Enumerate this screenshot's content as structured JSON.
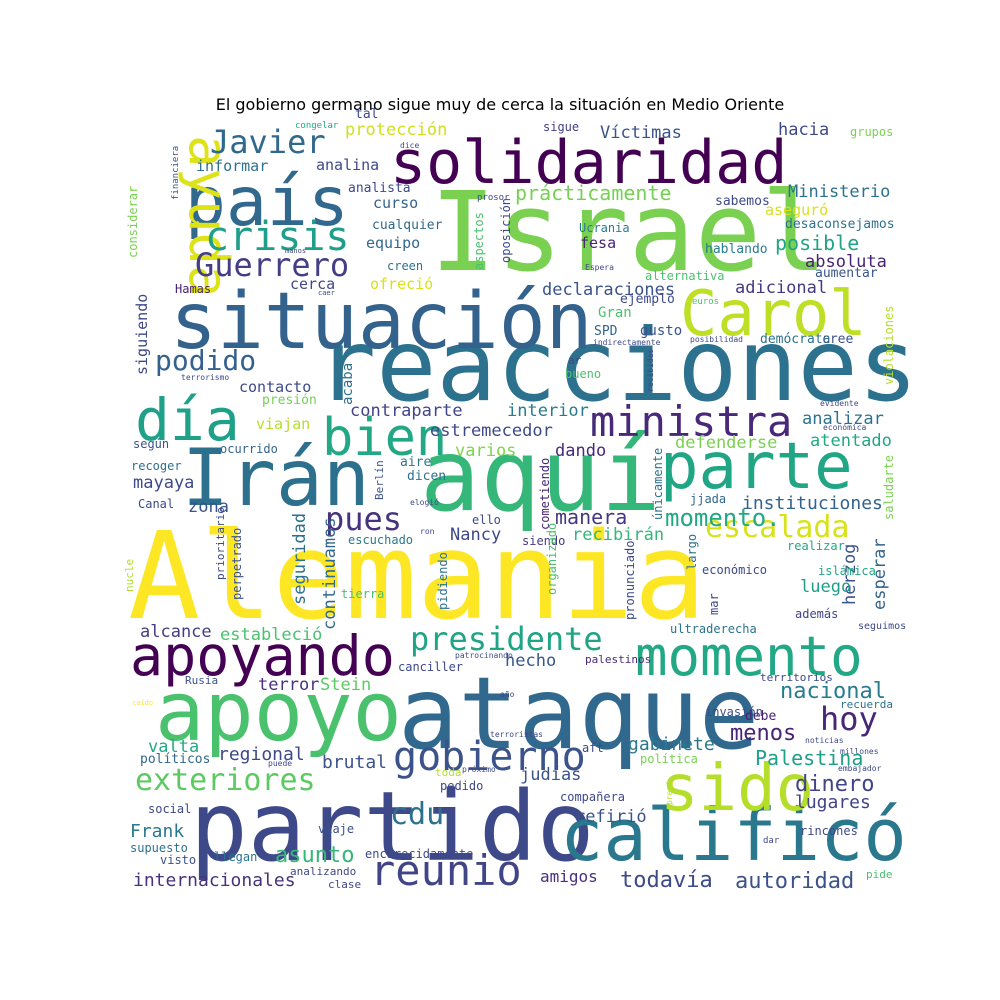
{
  "title": "El gobierno germano sigue muy de cerca la situación en Medio Oriente",
  "colormap": "viridis",
  "background": "#ffffff",
  "words": [
    {
      "text": "Alemania",
      "color": "#fde725"
    },
    {
      "text": "Israel",
      "color": "#7ad151"
    },
    {
      "text": "ataque",
      "color": "#31688e"
    },
    {
      "text": "reacciones",
      "color": "#2c728e"
    },
    {
      "text": "aquí",
      "color": "#35b779"
    },
    {
      "text": "partido",
      "color": "#3e4989"
    },
    {
      "text": "situación",
      "color": "#33638d"
    },
    {
      "text": "apoyo",
      "color": "#4ac16d"
    },
    {
      "text": "solidaridad",
      "color": "#440154"
    },
    {
      "text": "Irán",
      "color": "#2d708e"
    },
    {
      "text": "calificó",
      "color": "#2a788e"
    },
    {
      "text": "país",
      "color": "#31688e"
    },
    {
      "text": "Carol",
      "color": "#bddf26"
    },
    {
      "text": "parte",
      "color": "#21a685"
    },
    {
      "text": "momento",
      "color": "#22a884"
    },
    {
      "text": "apoyando",
      "color": "#440154"
    },
    {
      "text": "día",
      "color": "#1fa088"
    },
    {
      "text": "sido",
      "color": "#b5de2b"
    },
    {
      "text": "ayuda",
      "color": "#dde318"
    },
    {
      "text": "gobierno",
      "color": "#3b528b"
    },
    {
      "text": "bien",
      "color": "#22a884"
    },
    {
      "text": "reunió",
      "color": "#414487"
    },
    {
      "text": "crisis",
      "color": "#1f9e89"
    },
    {
      "text": "ministra",
      "color": "#482878"
    },
    {
      "text": "presidente",
      "color": "#20a486"
    },
    {
      "text": "exteriores",
      "color": "#5ec962"
    },
    {
      "text": "Guerrero",
      "color": "#433e85"
    },
    {
      "text": "Javier",
      "color": "#31688e"
    },
    {
      "text": "escalada",
      "color": "#d8e219"
    },
    {
      "text": "pues",
      "color": "#46327e"
    },
    {
      "text": "hoy",
      "color": "#482677"
    },
    {
      "text": "cdu",
      "color": "#2c728e"
    },
    {
      "text": "podido",
      "color": "#34618d"
    },
    {
      "text": "nacional",
      "color": "#287c8e"
    },
    {
      "text": "momento.",
      "color": "#22a884"
    },
    {
      "text": "Palestina",
      "color": "#1fa088"
    },
    {
      "text": "autoridad",
      "color": "#3b528b"
    },
    {
      "text": "todavía",
      "color": "#3e4989"
    },
    {
      "text": "manera",
      "color": "#453882"
    },
    {
      "text": "menos",
      "color": "#482475"
    },
    {
      "text": "asunto",
      "color": "#35b779"
    },
    {
      "text": "gabinete",
      "color": "#2a788e"
    },
    {
      "text": "dinero",
      "color": "#414487"
    },
    {
      "text": "lugares",
      "color": "#414487"
    },
    {
      "text": "brutal",
      "color": "#3b528b"
    },
    {
      "text": "regional",
      "color": "#3e4989"
    },
    {
      "text": "Frank",
      "color": "#2a788e"
    },
    {
      "text": "internacionales",
      "color": "#46337e"
    },
    {
      "text": "amigos",
      "color": "#472f7d"
    },
    {
      "text": "instituciones",
      "color": "#33638d"
    },
    {
      "text": "protección",
      "color": "#d0e11c"
    },
    {
      "text": "prácticamente",
      "color": "#75d054"
    },
    {
      "text": "Víctimas",
      "color": "#3b528b"
    },
    {
      "text": "hacia",
      "color": "#3e4989"
    },
    {
      "text": "Ministerio",
      "color": "#2c728e"
    },
    {
      "text": "posible",
      "color": "#20a486"
    },
    {
      "text": "absoluta",
      "color": "#482475"
    },
    {
      "text": "adicional",
      "color": "#443983"
    },
    {
      "text": "declaraciones",
      "color": "#3b528b"
    },
    {
      "text": "contraparte",
      "color": "#414487"
    },
    {
      "text": "estremecedor",
      "color": "#3e4989"
    },
    {
      "text": "interior",
      "color": "#287c8e"
    },
    {
      "text": "analizar",
      "color": "#2c728e"
    },
    {
      "text": "atentado",
      "color": "#22a884"
    },
    {
      "text": "defenderse",
      "color": "#7ad151"
    },
    {
      "text": "dando",
      "color": "#482878"
    },
    {
      "text": "varios",
      "color": "#7fd34e"
    },
    {
      "text": "recibirán",
      "color": "#35b779"
    },
    {
      "text": "herzog",
      "color": "#3b528b"
    },
    {
      "text": "esperar",
      "color": "#33638d"
    },
    {
      "text": "luego",
      "color": "#1f9e89"
    },
    {
      "text": "seguridad",
      "color": "#2d708e"
    },
    {
      "text": "continuamos",
      "color": "#31688e"
    },
    {
      "text": "estableció",
      "color": "#4ac16d"
    },
    {
      "text": "alcance",
      "color": "#433e85"
    },
    {
      "text": "Stein",
      "color": "#5ec962"
    },
    {
      "text": "terror",
      "color": "#46327e"
    },
    {
      "text": "hecho",
      "color": "#39568c"
    },
    {
      "text": "judías",
      "color": "#3b528b"
    },
    {
      "text": "refirió",
      "color": "#3b528b"
    },
    {
      "text": "valta",
      "color": "#22a884"
    },
    {
      "text": "Nancy",
      "color": "#3e4989"
    },
    {
      "text": "mayaya",
      "color": "#3e4989"
    },
    {
      "text": "zona",
      "color": "#3b528b"
    },
    {
      "text": "analina",
      "color": "#3e4989"
    },
    {
      "text": "curso",
      "color": "#33638d"
    },
    {
      "text": "equipo",
      "color": "#31688e"
    },
    {
      "text": "informar",
      "color": "#2c728e"
    },
    {
      "text": "cerca",
      "color": "#3e4989"
    },
    {
      "text": "ofreció",
      "color": "#d8e219"
    },
    {
      "text": "contacto",
      "color": "#3e4989"
    },
    {
      "text": "fesa",
      "color": "#482475"
    },
    {
      "text": "sabemos",
      "color": "#3e4989"
    },
    {
      "text": "aseguró",
      "color": "#d8e219"
    },
    {
      "text": "desaconsejamos",
      "color": "#2c728e"
    },
    {
      "text": "hablando",
      "color": "#287c8e"
    },
    {
      "text": "aumentar",
      "color": "#39568c"
    },
    {
      "text": "cualquier",
      "color": "#31688e"
    },
    {
      "text": "analista",
      "color": "#3e4989"
    },
    {
      "text": "tal",
      "color": "#3e4989"
    },
    {
      "text": "sigue",
      "color": "#433e85"
    },
    {
      "text": "grupos",
      "color": "#7ad151"
    },
    {
      "text": "congelar",
      "color": "#22a884"
    },
    {
      "text": "alternativa",
      "color": "#4ac16d"
    },
    {
      "text": "Gran",
      "color": "#4ac16d"
    },
    {
      "text": "SPD",
      "color": "#33638d"
    },
    {
      "text": "gusto",
      "color": "#3b528b"
    },
    {
      "text": "ejemplo",
      "color": "#3e4989"
    },
    {
      "text": "euros",
      "color": "#4ac16d"
    },
    {
      "text": "demócrata",
      "color": "#2c728e"
    },
    {
      "text": "cree",
      "color": "#3b528b"
    },
    {
      "text": "bueno",
      "color": "#4ac16d"
    },
    {
      "text": "siguiendo",
      "color": "#3e4989"
    },
    {
      "text": "Hamas",
      "color": "#482475"
    },
    {
      "text": "presión",
      "color": "#75d054"
    },
    {
      "text": "viajan",
      "color": "#b5de2b"
    },
    {
      "text": "acaba",
      "color": "#2d708e"
    },
    {
      "text": "según",
      "color": "#3b528b"
    },
    {
      "text": "ocurrido",
      "color": "#33638d"
    },
    {
      "text": "recoger",
      "color": "#2c728e"
    },
    {
      "text": "aire",
      "color": "#2a788e"
    },
    {
      "text": "dicen",
      "color": "#2c728e"
    },
    {
      "text": "Canal",
      "color": "#3e4989"
    },
    {
      "text": "escuchado",
      "color": "#2a788e"
    },
    {
      "text": "siendo",
      "color": "#443983"
    },
    {
      "text": "ello",
      "color": "#3e4989"
    },
    {
      "text": "jjada",
      "color": "#31688e"
    },
    {
      "text": "realizar",
      "color": "#22a884"
    },
    {
      "text": "islámica",
      "color": "#22a884"
    },
    {
      "text": "económico",
      "color": "#3e4989"
    },
    {
      "text": "además",
      "color": "#414487"
    },
    {
      "text": "seguimos",
      "color": "#3e4989"
    },
    {
      "text": "ultraderecha",
      "color": "#2c728e"
    },
    {
      "text": "canciller",
      "color": "#3e4989"
    },
    {
      "text": "palestinos",
      "color": "#482878"
    },
    {
      "text": "territorios",
      "color": "#3e4989"
    },
    {
      "text": "invasión",
      "color": "#3e4989"
    },
    {
      "text": "debe",
      "color": "#482475"
    },
    {
      "text": "recuerda",
      "color": "#2c728e"
    },
    {
      "text": "Rusia",
      "color": "#3b528b"
    },
    {
      "text": "política",
      "color": "#7ad151"
    },
    {
      "text": "políticos",
      "color": "#31688e"
    },
    {
      "text": "pedido",
      "color": "#3e4989"
    },
    {
      "text": "toda",
      "color": "#b5de2b"
    },
    {
      "text": "compañera",
      "color": "#3e4989"
    },
    {
      "text": "social",
      "color": "#3e4989"
    },
    {
      "text": "viaje",
      "color": "#3b528b"
    },
    {
      "text": "supuesto",
      "color": "#2c728e"
    },
    {
      "text": "visto",
      "color": "#3b528b"
    },
    {
      "text": "llegan",
      "color": "#2c728e"
    },
    {
      "text": "encarecidamente",
      "color": "#3e4989"
    },
    {
      "text": "analizando",
      "color": "#3e4989"
    },
    {
      "text": "clase",
      "color": "#3e4989"
    },
    {
      "text": "rincones",
      "color": "#3e4989"
    },
    {
      "text": "pide",
      "color": "#4ac16d"
    },
    {
      "text": "dar",
      "color": "#3e4989"
    },
    {
      "text": "considerar",
      "color": "#7ad151"
    },
    {
      "text": "financiera",
      "color": "#3b528b"
    },
    {
      "text": "aspectos",
      "color": "#4ac16d"
    },
    {
      "text": "oposición",
      "color": "#3e4989"
    },
    {
      "text": "Ucrania",
      "color": "#287c8e"
    },
    {
      "text": "creen",
      "color": "#2c728e"
    },
    {
      "text": "prosor",
      "color": "#3e4989"
    },
    {
      "text": "dice",
      "color": "#3e4989"
    },
    {
      "text": "caer",
      "color": "#3e4989"
    },
    {
      "text": "manos",
      "color": "#3e4989"
    },
    {
      "text": "Espera",
      "color": "#3e4989"
    },
    {
      "text": "indirectamente",
      "color": "#3e4989"
    },
    {
      "text": "posibilidad",
      "color": "#3e4989"
    },
    {
      "text": "ar",
      "color": "#3e4989"
    },
    {
      "text": "recibidas",
      "color": "#3e4989"
    },
    {
      "text": "violaciones",
      "color": "#b5de2b"
    },
    {
      "text": "terrorismo",
      "color": "#3e4989"
    },
    {
      "text": "evidente",
      "color": "#3e4989"
    },
    {
      "text": "económica",
      "color": "#3e4989"
    },
    {
      "text": "saludarte",
      "color": "#7ad151"
    },
    {
      "text": "Berlín",
      "color": "#3b528b"
    },
    {
      "text": "elogió",
      "color": "#3e4989"
    },
    {
      "text": "únicamente",
      "color": "#2c728e"
    },
    {
      "text": "cometiendo",
      "color": "#482475"
    },
    {
      "text": "organizado",
      "color": "#4ac16d"
    },
    {
      "text": "pidiendo",
      "color": "#2c728e"
    },
    {
      "text": "pronunciado",
      "color": "#3e4989"
    },
    {
      "text": "largo",
      "color": "#2c728e"
    },
    {
      "text": "mar",
      "color": "#3e4989"
    },
    {
      "text": "tierra",
      "color": "#4ac16d"
    },
    {
      "text": "ron",
      "color": "#3e4989"
    },
    {
      "text": "prioritario",
      "color": "#3e4989"
    },
    {
      "text": "perpetrado",
      "color": "#3b528b"
    },
    {
      "text": "nucle",
      "color": "#b5de2b"
    },
    {
      "text": "patrocinando",
      "color": "#3e4989"
    },
    {
      "text": "año",
      "color": "#3e4989"
    },
    {
      "text": "caído",
      "color": "#fde725"
    },
    {
      "text": "terroristas",
      "color": "#3e4989"
    },
    {
      "text": "próximo",
      "color": "#3e4989"
    },
    {
      "text": "puede",
      "color": "#3e4989"
    },
    {
      "text": "millones",
      "color": "#3e4989"
    },
    {
      "text": "noticias",
      "color": "#3e4989"
    },
    {
      "text": "embajador",
      "color": "#3e4989"
    },
    {
      "text": "prevé",
      "color": "#b5de2b"
    },
    {
      "text": "aft",
      "color": "#3e4989"
    }
  ]
}
